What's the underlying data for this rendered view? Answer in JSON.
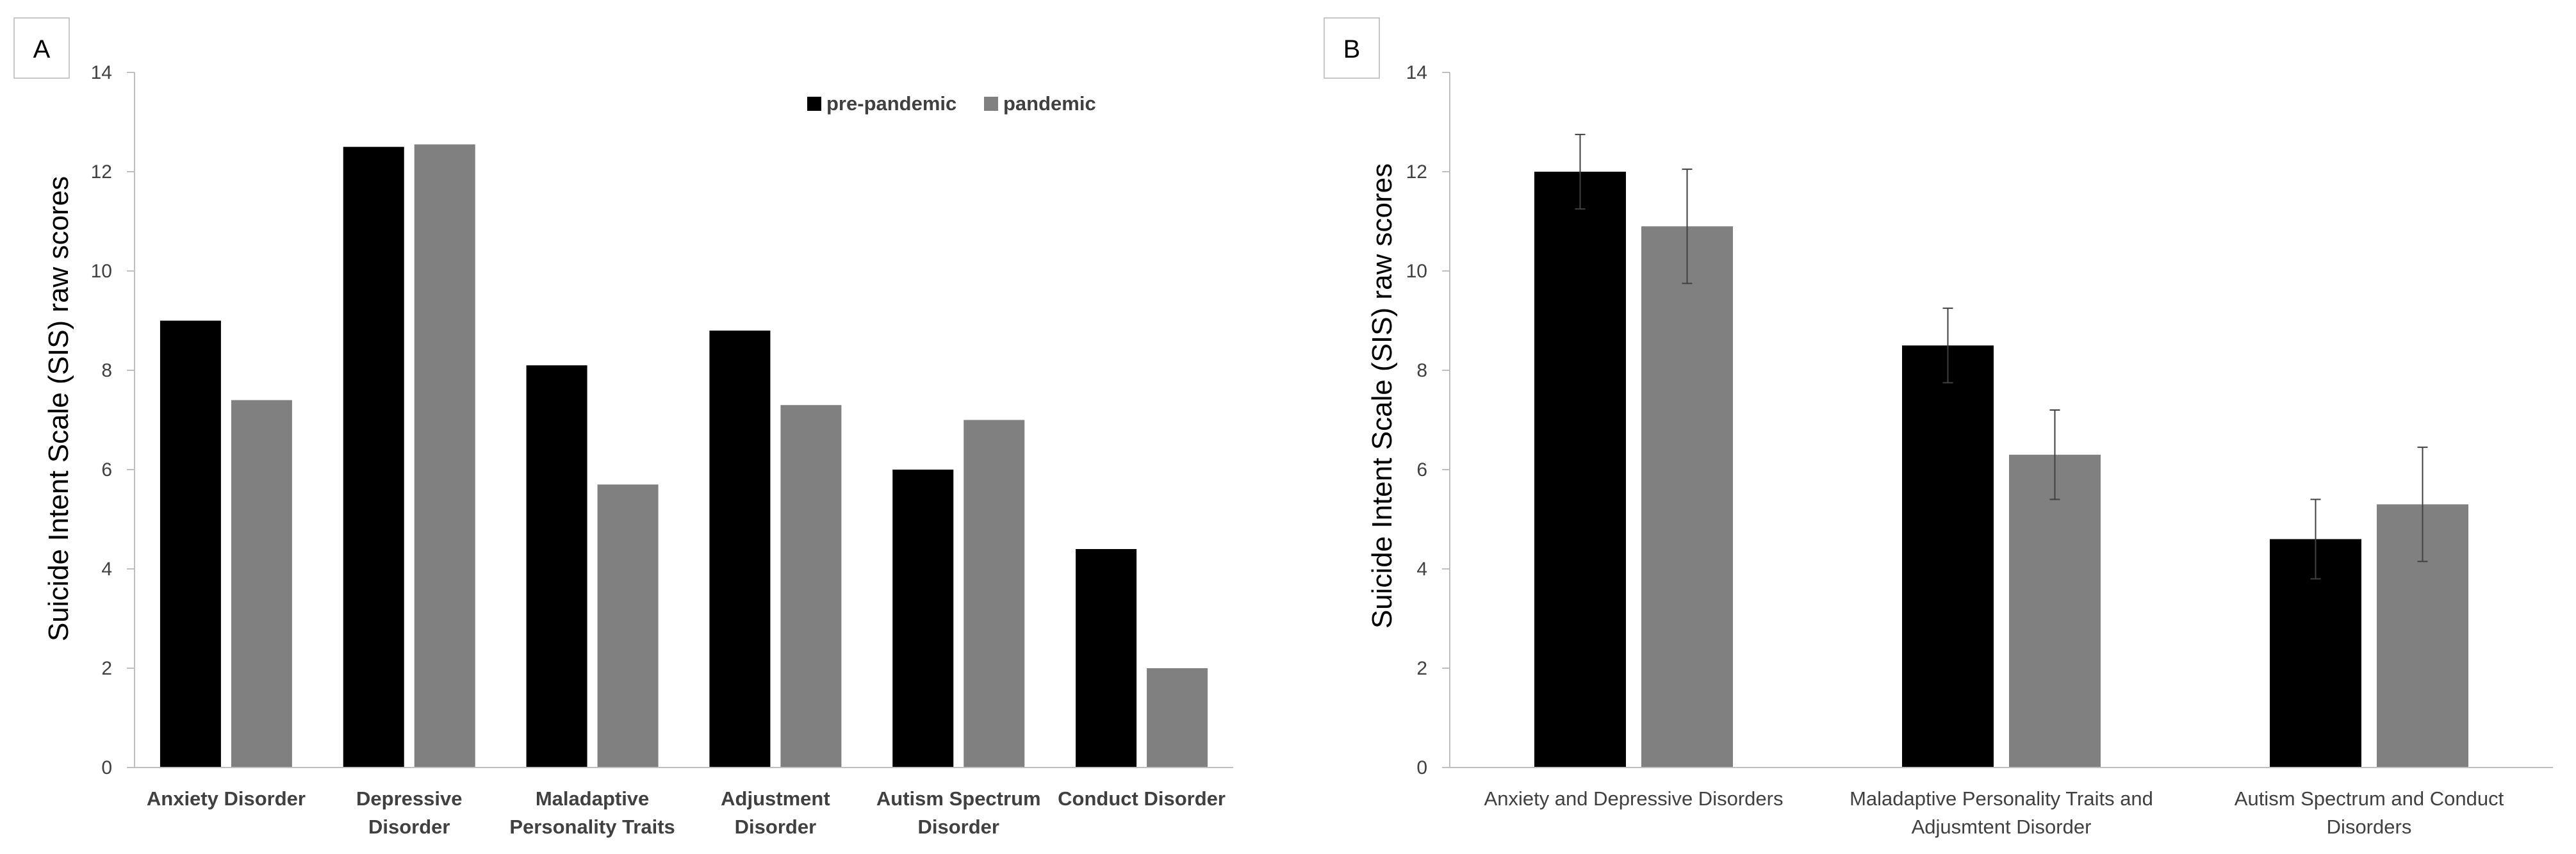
{
  "colors": {
    "pre": "#000000",
    "pandemic": "#808080",
    "axis": "#bfbfbf",
    "text": "#404040"
  },
  "chart_data": [
    {
      "panel": "A",
      "type": "bar",
      "ylabel": "Suicide Intent Scale (SIS) raw  scores",
      "ylim": [
        0,
        14
      ],
      "yticks": [
        "0",
        "2",
        "4",
        "6",
        "8",
        "10",
        "12",
        "14"
      ],
      "legend": [
        "pre-pandemic",
        "pandemic"
      ],
      "categories": [
        [
          "Anxiety Disorder"
        ],
        [
          "Depressive",
          "Disorder"
        ],
        [
          "Maladaptive",
          "Personality Traits"
        ],
        [
          "Adjustment",
          "Disorder"
        ],
        [
          "Autism Spectrum",
          "Disorder"
        ],
        [
          "Conduct Disorder"
        ]
      ],
      "series": [
        {
          "name": "pre-pandemic",
          "values": [
            9.0,
            12.5,
            8.1,
            8.8,
            6.0,
            4.4
          ]
        },
        {
          "name": "pandemic",
          "values": [
            7.4,
            12.55,
            5.7,
            7.3,
            7.0,
            2.0
          ]
        }
      ]
    },
    {
      "panel": "B",
      "type": "bar",
      "ylabel": "Suicide Intent Scale (SIS) raw  scores",
      "ylim": [
        0,
        14
      ],
      "yticks": [
        "0",
        "2",
        "4",
        "6",
        "8",
        "10",
        "12",
        "14"
      ],
      "categories": [
        [
          "Anxiety and Depressive Disorders"
        ],
        [
          "Maladaptive Personality Traits and",
          "Adjusmtent Disorder"
        ],
        [
          "Autism Spectrum and Conduct",
          "Disorders"
        ]
      ],
      "series": [
        {
          "name": "pre-pandemic",
          "values": [
            12.0,
            8.5,
            4.6
          ],
          "errors": [
            0.75,
            0.75,
            0.8
          ]
        },
        {
          "name": "pandemic",
          "values": [
            10.9,
            6.3,
            5.3
          ],
          "errors": [
            1.15,
            0.9,
            1.15
          ]
        }
      ]
    }
  ]
}
